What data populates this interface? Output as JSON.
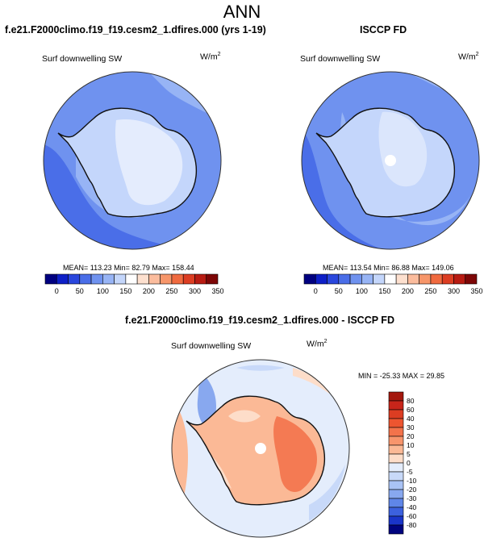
{
  "figure": {
    "title": "ANN"
  },
  "chart_data": [
    {
      "type": "heatmap",
      "title": "f.e21.F2000climo.f19_f19.cesm2_1.dfires.000 (yrs 1-19)",
      "variable": "Surf downwelling SW",
      "units_text": "W/m",
      "units_sup": "2",
      "stats": {
        "mean": "113.23",
        "min": "82.79",
        "max": "158.44"
      },
      "stats_text": "MEAN= 113.23  Min=  82.79  Max= 158.44",
      "colorbar": {
        "orientation": "horizontal",
        "tick_labels": [
          "0",
          "50",
          "100",
          "150",
          "200",
          "250",
          "300",
          "350"
        ],
        "colors": [
          "#000080",
          "#0d1fc7",
          "#2946dd",
          "#4a6ee8",
          "#6f92ef",
          "#97b4f5",
          "#c4d6fb",
          "#ffffff",
          "#fde0cf",
          "#fbbc9d",
          "#f7966a",
          "#f06a3f",
          "#dc3d22",
          "#b81b12",
          "#7d0606"
        ]
      }
    },
    {
      "type": "heatmap",
      "title": "ISCCP FD",
      "variable": "Surf downwelling SW",
      "units_text": "W/m",
      "units_sup": "2",
      "stats": {
        "mean": "113.54",
        "min": "86.88",
        "max": "149.06"
      },
      "stats_text": "MEAN= 113.54  Min=  86.88  Max= 149.06",
      "colorbar": {
        "orientation": "horizontal",
        "tick_labels": [
          "0",
          "50",
          "100",
          "150",
          "200",
          "250",
          "300",
          "350"
        ],
        "colors": [
          "#000080",
          "#0d1fc7",
          "#2946dd",
          "#4a6ee8",
          "#6f92ef",
          "#97b4f5",
          "#c4d6fb",
          "#ffffff",
          "#fde0cf",
          "#fbbc9d",
          "#f7966a",
          "#f06a3f",
          "#dc3d22",
          "#b81b12",
          "#7d0606"
        ]
      }
    },
    {
      "type": "heatmap",
      "title": "f.e21.F2000climo.f19_f19.cesm2_1.dfires.000 - ISCCP FD",
      "variable": "Surf downwelling SW",
      "units_text": "W/m",
      "units_sup": "2",
      "stats": {
        "min": "-25.33",
        "max": "29.85"
      },
      "stats_text": "MIN = -25.33 MAX =  29.85",
      "colorbar": {
        "orientation": "vertical",
        "tick_labels": [
          "80",
          "60",
          "40",
          "30",
          "20",
          "10",
          "5",
          "0",
          "-5",
          "-10",
          "-20",
          "-30",
          "-40",
          "-60",
          "-80"
        ],
        "colors": [
          "#a4170d",
          "#c8251a",
          "#dc3d22",
          "#ed5530",
          "#f3734b",
          "#f8956c",
          "#fbb996",
          "#fdddc9",
          "#e4edfc",
          "#c8d9f9",
          "#a9c3f5",
          "#88a8ef",
          "#5f86e8",
          "#3c61de",
          "#1a35c9",
          "#00047f"
        ]
      }
    }
  ]
}
